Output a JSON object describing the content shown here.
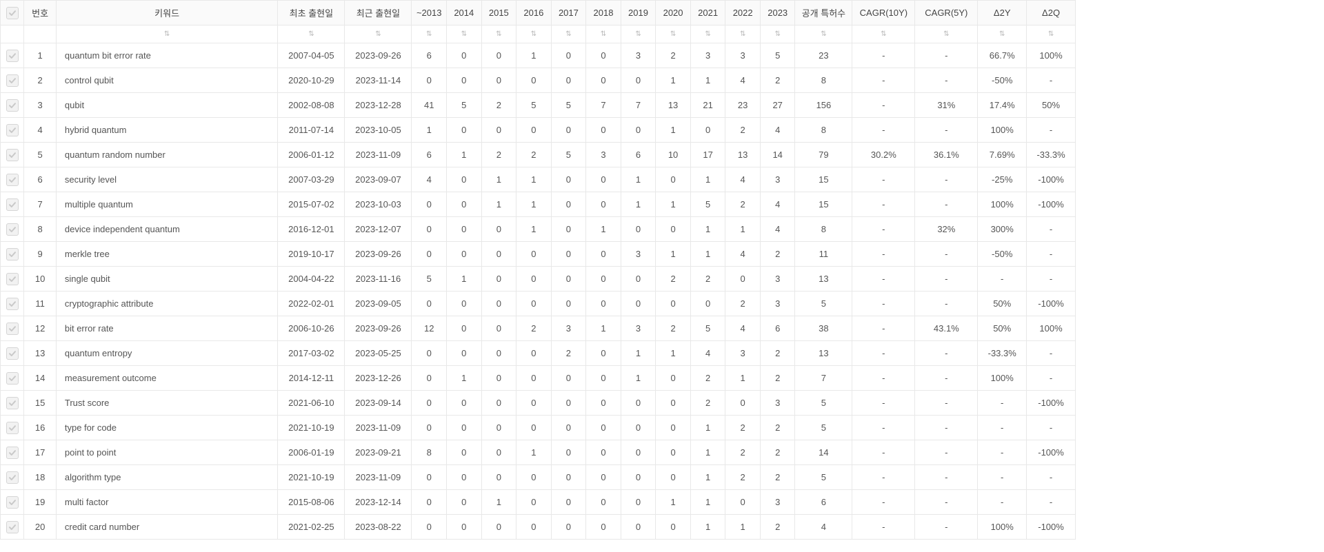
{
  "columns": {
    "checkbox": "",
    "index": "번호",
    "keyword": "키워드",
    "first_date": "최초 출현일",
    "last_date": "최근 출현일",
    "y_2013": "~2013",
    "y_2014": "2014",
    "y_2015": "2015",
    "y_2016": "2016",
    "y_2017": "2017",
    "y_2018": "2018",
    "y_2019": "2019",
    "y_2020": "2020",
    "y_2021": "2021",
    "y_2022": "2022",
    "y_2023": "2023",
    "total": "공개 특허수",
    "cagr10": "CAGR(10Y)",
    "cagr5": "CAGR(5Y)",
    "d2y": "Δ2Y",
    "d2q": "Δ2Q"
  },
  "rows": [
    {
      "idx": "1",
      "kw": "quantum bit error rate",
      "first": "2007-04-05",
      "last": "2023-09-26",
      "y": [
        "6",
        "0",
        "0",
        "1",
        "0",
        "0",
        "3",
        "2",
        "3",
        "3",
        "5"
      ],
      "tot": "23",
      "c10": "-",
      "c5": "-",
      "d2y": "66.7%",
      "d2q": "100%"
    },
    {
      "idx": "2",
      "kw": "control qubit",
      "first": "2020-10-29",
      "last": "2023-11-14",
      "y": [
        "0",
        "0",
        "0",
        "0",
        "0",
        "0",
        "0",
        "1",
        "1",
        "4",
        "2"
      ],
      "tot": "8",
      "c10": "-",
      "c5": "-",
      "d2y": "-50%",
      "d2q": "-"
    },
    {
      "idx": "3",
      "kw": "qubit",
      "first": "2002-08-08",
      "last": "2023-12-28",
      "y": [
        "41",
        "5",
        "2",
        "5",
        "5",
        "7",
        "7",
        "13",
        "21",
        "23",
        "27"
      ],
      "tot": "156",
      "c10": "-",
      "c5": "31%",
      "d2y": "17.4%",
      "d2q": "50%"
    },
    {
      "idx": "4",
      "kw": "hybrid quantum",
      "first": "2011-07-14",
      "last": "2023-10-05",
      "y": [
        "1",
        "0",
        "0",
        "0",
        "0",
        "0",
        "0",
        "1",
        "0",
        "2",
        "4"
      ],
      "tot": "8",
      "c10": "-",
      "c5": "-",
      "d2y": "100%",
      "d2q": "-"
    },
    {
      "idx": "5",
      "kw": "quantum random number",
      "first": "2006-01-12",
      "last": "2023-11-09",
      "y": [
        "6",
        "1",
        "2",
        "2",
        "5",
        "3",
        "6",
        "10",
        "17",
        "13",
        "14"
      ],
      "tot": "79",
      "c10": "30.2%",
      "c5": "36.1%",
      "d2y": "7.69%",
      "d2q": "-33.3%"
    },
    {
      "idx": "6",
      "kw": "security level",
      "first": "2007-03-29",
      "last": "2023-09-07",
      "y": [
        "4",
        "0",
        "1",
        "1",
        "0",
        "0",
        "1",
        "0",
        "1",
        "4",
        "3"
      ],
      "tot": "15",
      "c10": "-",
      "c5": "-",
      "d2y": "-25%",
      "d2q": "-100%"
    },
    {
      "idx": "7",
      "kw": "multiple quantum",
      "first": "2015-07-02",
      "last": "2023-10-03",
      "y": [
        "0",
        "0",
        "1",
        "1",
        "0",
        "0",
        "1",
        "1",
        "5",
        "2",
        "4"
      ],
      "tot": "15",
      "c10": "-",
      "c5": "-",
      "d2y": "100%",
      "d2q": "-100%"
    },
    {
      "idx": "8",
      "kw": "device independent quantum",
      "first": "2016-12-01",
      "last": "2023-12-07",
      "y": [
        "0",
        "0",
        "0",
        "1",
        "0",
        "1",
        "0",
        "0",
        "1",
        "1",
        "4"
      ],
      "tot": "8",
      "c10": "-",
      "c5": "32%",
      "d2y": "300%",
      "d2q": "-"
    },
    {
      "idx": "9",
      "kw": "merkle tree",
      "first": "2019-10-17",
      "last": "2023-09-26",
      "y": [
        "0",
        "0",
        "0",
        "0",
        "0",
        "0",
        "3",
        "1",
        "1",
        "4",
        "2"
      ],
      "tot": "11",
      "c10": "-",
      "c5": "-",
      "d2y": "-50%",
      "d2q": "-"
    },
    {
      "idx": "10",
      "kw": "single qubit",
      "first": "2004-04-22",
      "last": "2023-11-16",
      "y": [
        "5",
        "1",
        "0",
        "0",
        "0",
        "0",
        "0",
        "2",
        "2",
        "0",
        "3"
      ],
      "tot": "13",
      "c10": "-",
      "c5": "-",
      "d2y": "-",
      "d2q": "-"
    },
    {
      "idx": "11",
      "kw": "cryptographic attribute",
      "first": "2022-02-01",
      "last": "2023-09-05",
      "y": [
        "0",
        "0",
        "0",
        "0",
        "0",
        "0",
        "0",
        "0",
        "0",
        "2",
        "3"
      ],
      "tot": "5",
      "c10": "-",
      "c5": "-",
      "d2y": "50%",
      "d2q": "-100%"
    },
    {
      "idx": "12",
      "kw": "bit error rate",
      "first": "2006-10-26",
      "last": "2023-09-26",
      "y": [
        "12",
        "0",
        "0",
        "2",
        "3",
        "1",
        "3",
        "2",
        "5",
        "4",
        "6"
      ],
      "tot": "38",
      "c10": "-",
      "c5": "43.1%",
      "d2y": "50%",
      "d2q": "100%"
    },
    {
      "idx": "13",
      "kw": "quantum entropy",
      "first": "2017-03-02",
      "last": "2023-05-25",
      "y": [
        "0",
        "0",
        "0",
        "0",
        "2",
        "0",
        "1",
        "1",
        "4",
        "3",
        "2"
      ],
      "tot": "13",
      "c10": "-",
      "c5": "-",
      "d2y": "-33.3%",
      "d2q": "-"
    },
    {
      "idx": "14",
      "kw": "measurement outcome",
      "first": "2014-12-11",
      "last": "2023-12-26",
      "y": [
        "0",
        "1",
        "0",
        "0",
        "0",
        "0",
        "1",
        "0",
        "2",
        "1",
        "2"
      ],
      "tot": "7",
      "c10": "-",
      "c5": "-",
      "d2y": "100%",
      "d2q": "-"
    },
    {
      "idx": "15",
      "kw": "Trust score",
      "first": "2021-06-10",
      "last": "2023-09-14",
      "y": [
        "0",
        "0",
        "0",
        "0",
        "0",
        "0",
        "0",
        "0",
        "2",
        "0",
        "3"
      ],
      "tot": "5",
      "c10": "-",
      "c5": "-",
      "d2y": "-",
      "d2q": "-100%"
    },
    {
      "idx": "16",
      "kw": "type for code",
      "first": "2021-10-19",
      "last": "2023-11-09",
      "y": [
        "0",
        "0",
        "0",
        "0",
        "0",
        "0",
        "0",
        "0",
        "1",
        "2",
        "2"
      ],
      "tot": "5",
      "c10": "-",
      "c5": "-",
      "d2y": "-",
      "d2q": "-"
    },
    {
      "idx": "17",
      "kw": "point to point",
      "first": "2006-01-19",
      "last": "2023-09-21",
      "y": [
        "8",
        "0",
        "0",
        "1",
        "0",
        "0",
        "0",
        "0",
        "1",
        "2",
        "2"
      ],
      "tot": "14",
      "c10": "-",
      "c5": "-",
      "d2y": "-",
      "d2q": "-100%"
    },
    {
      "idx": "18",
      "kw": "algorithm type",
      "first": "2021-10-19",
      "last": "2023-11-09",
      "y": [
        "0",
        "0",
        "0",
        "0",
        "0",
        "0",
        "0",
        "0",
        "1",
        "2",
        "2"
      ],
      "tot": "5",
      "c10": "-",
      "c5": "-",
      "d2y": "-",
      "d2q": "-"
    },
    {
      "idx": "19",
      "kw": "multi factor",
      "first": "2015-08-06",
      "last": "2023-12-14",
      "y": [
        "0",
        "0",
        "1",
        "0",
        "0",
        "0",
        "0",
        "1",
        "1",
        "0",
        "3"
      ],
      "tot": "6",
      "c10": "-",
      "c5": "-",
      "d2y": "-",
      "d2q": "-"
    },
    {
      "idx": "20",
      "kw": "credit card number",
      "first": "2021-02-25",
      "last": "2023-08-22",
      "y": [
        "0",
        "0",
        "0",
        "0",
        "0",
        "0",
        "0",
        "0",
        "1",
        "1",
        "2"
      ],
      "tot": "4",
      "c10": "-",
      "c5": "-",
      "d2y": "100%",
      "d2q": "-100%"
    }
  ]
}
